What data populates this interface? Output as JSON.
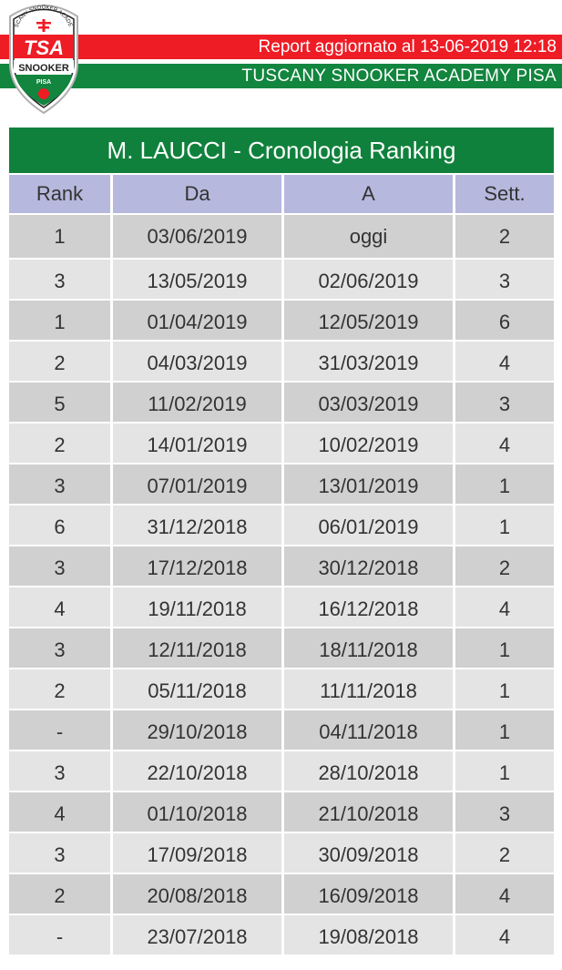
{
  "logo": {
    "name": "TSA Snooker Pisa crest",
    "arc_text": "TUSCANY SNOOKER ACADEMY",
    "main_text": "TSA",
    "sub_text": "SNOOKER",
    "city_text": "PISA"
  },
  "header": {
    "report_line": "Report aggiornato al 13-06-2019 12:18",
    "academy_name": "TUSCANY SNOOKER ACADEMY PISA"
  },
  "colors": {
    "red_banner": "#ee1c25",
    "green_banner": "#12853e",
    "title_green": "#10813c",
    "header_lavender": "#b7b8dd"
  },
  "table": {
    "title": "M. LAUCCI - Cronologia Ranking",
    "columns": [
      "Rank",
      "Da",
      "A",
      "Sett."
    ],
    "rows": [
      [
        "1",
        "03/06/2019",
        "oggi",
        "2"
      ],
      [
        "3",
        "13/05/2019",
        "02/06/2019",
        "3"
      ],
      [
        "1",
        "01/04/2019",
        "12/05/2019",
        "6"
      ],
      [
        "2",
        "04/03/2019",
        "31/03/2019",
        "4"
      ],
      [
        "5",
        "11/02/2019",
        "03/03/2019",
        "3"
      ],
      [
        "2",
        "14/01/2019",
        "10/02/2019",
        "4"
      ],
      [
        "3",
        "07/01/2019",
        "13/01/2019",
        "1"
      ],
      [
        "6",
        "31/12/2018",
        "06/01/2019",
        "1"
      ],
      [
        "3",
        "17/12/2018",
        "30/12/2018",
        "2"
      ],
      [
        "4",
        "19/11/2018",
        "16/12/2018",
        "4"
      ],
      [
        "3",
        "12/11/2018",
        "18/11/2018",
        "1"
      ],
      [
        "2",
        "05/11/2018",
        "11/11/2018",
        "1"
      ],
      [
        "-",
        "29/10/2018",
        "04/11/2018",
        "1"
      ],
      [
        "3",
        "22/10/2018",
        "28/10/2018",
        "1"
      ],
      [
        "4",
        "01/10/2018",
        "21/10/2018",
        "3"
      ],
      [
        "3",
        "17/09/2018",
        "30/09/2018",
        "2"
      ],
      [
        "2",
        "20/08/2018",
        "16/09/2018",
        "4"
      ],
      [
        "-",
        "23/07/2018",
        "19/08/2018",
        "4"
      ]
    ]
  }
}
